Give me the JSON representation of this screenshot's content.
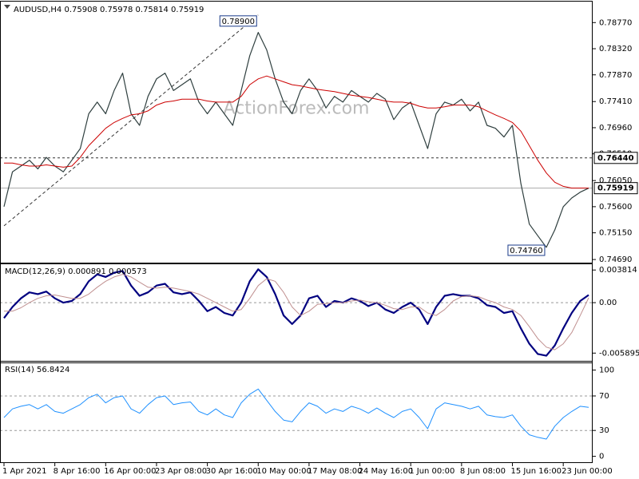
{
  "chart_data": [
    {
      "type": "line",
      "title": "AUDUSD,H4 0.75908 0.75978 0.75814 0.75919",
      "watermark": "ActionForex.com",
      "series": [
        {
          "color": "#2f3f3f",
          "width": 1.2,
          "values": [
            0.756,
            0.762,
            0.763,
            0.764,
            0.7625,
            0.7645,
            0.763,
            0.762,
            0.764,
            0.766,
            0.772,
            0.774,
            0.772,
            0.776,
            0.779,
            0.772,
            0.77,
            0.775,
            0.778,
            0.779,
            0.776,
            0.777,
            0.778,
            0.774,
            0.772,
            0.774,
            0.772,
            0.77,
            0.776,
            0.782,
            0.786,
            0.783,
            0.778,
            0.774,
            0.772,
            0.776,
            0.778,
            0.776,
            0.773,
            0.775,
            0.774,
            0.776,
            0.775,
            0.774,
            0.7755,
            0.7745,
            0.771,
            0.773,
            0.774,
            0.77,
            0.766,
            0.772,
            0.774,
            0.7735,
            0.7745,
            0.7725,
            0.774,
            0.77,
            0.7695,
            0.768,
            0.77,
            0.76,
            0.753,
            0.751,
            0.749,
            0.752,
            0.756,
            0.7575,
            0.7585,
            0.75919
          ]
        },
        {
          "color": "#cc0000",
          "width": 1,
          "values": [
            0.7635,
            0.7635,
            0.7632,
            0.763,
            0.763,
            0.7632,
            0.763,
            0.7628,
            0.763,
            0.7645,
            0.7665,
            0.768,
            0.7695,
            0.7705,
            0.7712,
            0.7718,
            0.772,
            0.7725,
            0.7735,
            0.774,
            0.7742,
            0.7745,
            0.7745,
            0.7745,
            0.7742,
            0.774,
            0.774,
            0.774,
            0.775,
            0.777,
            0.778,
            0.7785,
            0.778,
            0.7775,
            0.777,
            0.7768,
            0.7765,
            0.7762,
            0.776,
            0.7758,
            0.7755,
            0.7752,
            0.775,
            0.7748,
            0.7745,
            0.7742,
            0.774,
            0.774,
            0.7738,
            0.7733,
            0.773,
            0.773,
            0.7732,
            0.7735,
            0.7735,
            0.7735,
            0.7732,
            0.7725,
            0.7718,
            0.7712,
            0.7705,
            0.769,
            0.7665,
            0.764,
            0.7618,
            0.7602,
            0.7595,
            0.7592,
            0.7592,
            0.7592
          ]
        }
      ],
      "ylim": [
        0.7465,
        0.7909
      ],
      "yticks": [
        {
          "value": 0.7877,
          "label": "0.78770"
        },
        {
          "value": 0.7832,
          "label": "0.78320"
        },
        {
          "value": 0.7787,
          "label": "0.77870"
        },
        {
          "value": 0.7741,
          "label": "0.77410"
        },
        {
          "value": 0.7696,
          "label": "0.76960"
        },
        {
          "value": 0.7651,
          "label": "0.76510"
        },
        {
          "value": 0.7605,
          "label": "0.76050"
        },
        {
          "value": 0.756,
          "label": "0.75600"
        },
        {
          "value": 0.7515,
          "label": "0.75150"
        },
        {
          "value": 0.7469,
          "label": "0.74690"
        }
      ],
      "levels": [
        {
          "value": 0.7644,
          "label": "0.76440",
          "style": "dashed"
        },
        {
          "value": 0.75919,
          "label": "0.75919",
          "style": "solid"
        }
      ],
      "annotations": [
        {
          "index": 30,
          "value": 0.789,
          "label": "0.78900"
        },
        {
          "index": 64,
          "value": 0.7476,
          "label": "0.74760"
        }
      ],
      "trendline": {
        "start": [
          0,
          0.7527
        ],
        "end": [
          30,
          0.789
        ]
      }
    },
    {
      "type": "line",
      "title": "MACD(12,26,9) 0.000891 0.000573",
      "series": [
        {
          "color": "#000080",
          "width": 2.2,
          "values": [
            -0.0018,
            -0.0005,
            0.0005,
            0.0012,
            0.001,
            0.0013,
            0.0005,
            0,
            0.0002,
            0.001,
            0.0025,
            0.0033,
            0.003,
            0.0035,
            0.0037,
            0.002,
            0.0008,
            0.0012,
            0.002,
            0.0022,
            0.0012,
            0.001,
            0.0012,
            0.0002,
            -0.001,
            -0.0005,
            -0.0012,
            -0.0015,
            0,
            0.0025,
            0.0039,
            0.003,
            0.001,
            -0.0015,
            -0.0025,
            -0.0015,
            0.0005,
            0.0008,
            -0.0005,
            0.0002,
            0,
            0.0005,
            0.0002,
            -0.0004,
            0,
            -0.0008,
            -0.0012,
            -0.0005,
            0,
            -0.0008,
            -0.0025,
            -0.0005,
            0.0008,
            0.001,
            0.0008,
            0.0008,
            0.0005,
            -0.0003,
            -0.0005,
            -0.0012,
            -0.001,
            -0.003,
            -0.0048,
            -0.006,
            -0.0062,
            -0.005,
            -0.003,
            -0.0012,
            0.0002,
            0.000891
          ]
        },
        {
          "color": "#c09090",
          "width": 1,
          "values": [
            -0.001,
            -0.001,
            -0.0006,
            0,
            0.0005,
            0.0008,
            0.0009,
            0.0007,
            0.0005,
            0.0005,
            0.001,
            0.0018,
            0.0025,
            0.003,
            0.0033,
            0.003,
            0.0024,
            0.0018,
            0.0017,
            0.0018,
            0.0017,
            0.0015,
            0.0013,
            0.001,
            0.0005,
            0,
            -0.0005,
            -0.001,
            -0.0008,
            0.0005,
            0.002,
            0.0028,
            0.0025,
            0.0012,
            -0.0005,
            -0.0015,
            -0.001,
            -0.0002,
            -0.0001,
            0,
            0,
            0.0002,
            0.0003,
            0.0001,
            0,
            -0.0003,
            -0.0007,
            -0.0008,
            -0.0005,
            -0.0005,
            -0.0012,
            -0.0015,
            -0.0008,
            0.0002,
            0.0007,
            0.0008,
            0.0007,
            0.0003,
            0,
            -0.0005,
            -0.0008,
            -0.0015,
            -0.0028,
            -0.0042,
            -0.0052,
            -0.0055,
            -0.0048,
            -0.0035,
            -0.0015,
            0.000573
          ]
        }
      ],
      "ylim": [
        -0.0068,
        0.0043
      ],
      "yticks": [
        0.003814,
        {
          "value": 0,
          "label": "0.00"
        },
        -0.005895
      ],
      "levels": [
        {
          "value": 0,
          "style": "dashed"
        }
      ]
    },
    {
      "type": "line",
      "title": "RSI(14) 56.8424",
      "categories": [
        "1 Apr 2021",
        null,
        null,
        null,
        null,
        null,
        "8 Apr 16:00",
        null,
        null,
        null,
        null,
        null,
        "16 Apr 00:00",
        null,
        null,
        null,
        null,
        null,
        "23 Apr 08:00",
        null,
        null,
        null,
        null,
        null,
        "30 Apr 16:00",
        null,
        null,
        null,
        null,
        null,
        "10 May 00:00",
        null,
        null,
        null,
        null,
        null,
        "17 May 08:00",
        null,
        null,
        null,
        null,
        null,
        "24 May 16:00",
        null,
        null,
        null,
        null,
        null,
        "1 Jun 00:00",
        null,
        null,
        null,
        null,
        null,
        "8 Jun 08:00",
        null,
        null,
        null,
        null,
        null,
        "15 Jun 16:00",
        null,
        null,
        null,
        null,
        null,
        "23 Jun 00:00",
        null,
        null,
        null
      ],
      "series": [
        {
          "color": "#1e90ff",
          "width": 1,
          "values": [
            45,
            55,
            58,
            60,
            55,
            60,
            52,
            50,
            55,
            60,
            68,
            72,
            62,
            68,
            70,
            55,
            50,
            60,
            68,
            70,
            60,
            62,
            63,
            52,
            48,
            55,
            48,
            45,
            62,
            72,
            78,
            65,
            52,
            42,
            40,
            52,
            62,
            58,
            50,
            55,
            52,
            58,
            55,
            50,
            56,
            50,
            45,
            52,
            55,
            45,
            32,
            55,
            62,
            60,
            58,
            55,
            58,
            48,
            46,
            45,
            48,
            35,
            25,
            22,
            20,
            35,
            45,
            52,
            58,
            56.8424
          ]
        }
      ],
      "ylim": [
        -5,
        107
      ],
      "yticks": [
        100,
        70,
        30,
        0
      ],
      "levels": [
        {
          "value": 70,
          "style": "dashed"
        },
        {
          "value": 30,
          "style": "dashed"
        }
      ]
    }
  ]
}
